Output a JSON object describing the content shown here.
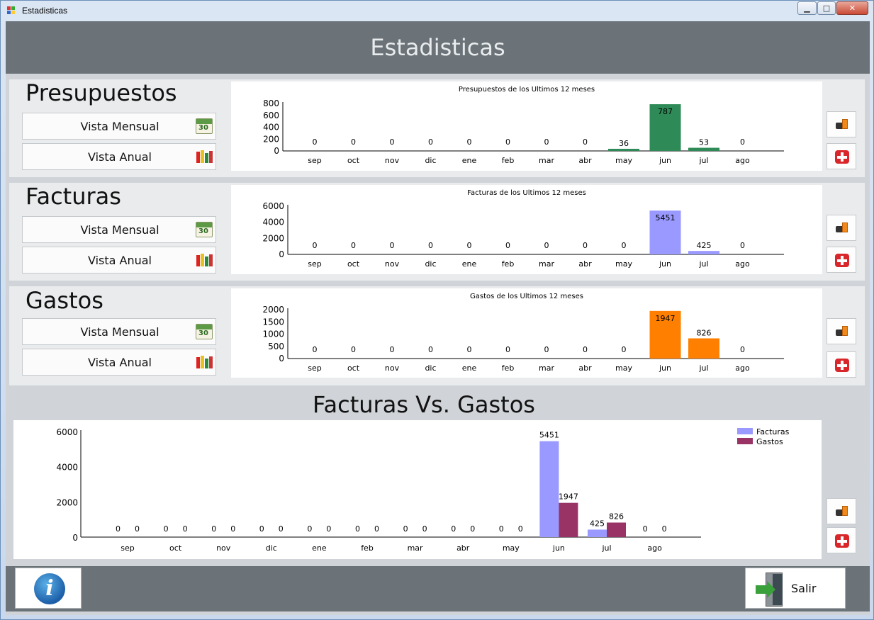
{
  "window": {
    "title": "Estadisticas",
    "min_label": "▁",
    "max_label": "□",
    "close_label": "✕"
  },
  "header": {
    "title": "Estadisticas"
  },
  "panels": [
    {
      "title": "Presupuestos",
      "monthly_label": "Vista Mensual",
      "yearly_label": "Vista Anual"
    },
    {
      "title": "Facturas",
      "monthly_label": "Vista Mensual",
      "yearly_label": "Vista Anual"
    },
    {
      "title": "Gastos",
      "monthly_label": "Vista Mensual",
      "yearly_label": "Vista Anual"
    }
  ],
  "calendar_icon_text": "30",
  "vs_title": "Facturas Vs. Gastos",
  "footer": {
    "info_glyph": "i",
    "exit_label": "Salir"
  },
  "colors": {
    "presupuestos": "#2e8b57",
    "facturas": "#9999ff",
    "gastos": "#ff8000",
    "gastos_vs": "#993366"
  },
  "chart_data": [
    {
      "type": "bar",
      "title": "Presupuestos de los Ultimos 12 meses",
      "categories": [
        "sep",
        "oct",
        "nov",
        "dic",
        "ene",
        "feb",
        "mar",
        "abr",
        "may",
        "jun",
        "jul",
        "ago"
      ],
      "values": [
        0,
        0,
        0,
        0,
        0,
        0,
        0,
        0,
        36,
        787,
        53,
        0
      ],
      "ylim": [
        0,
        800
      ],
      "yticks": [
        0,
        200,
        400,
        600,
        800
      ],
      "color": "#2e8b57"
    },
    {
      "type": "bar",
      "title": "Facturas de los Ultimos 12 meses",
      "categories": [
        "sep",
        "oct",
        "nov",
        "dic",
        "ene",
        "feb",
        "mar",
        "abr",
        "may",
        "jun",
        "jul",
        "ago"
      ],
      "values": [
        0,
        0,
        0,
        0,
        0,
        0,
        0,
        0,
        0,
        5451,
        425,
        0
      ],
      "ylim": [
        0,
        6000
      ],
      "yticks": [
        0,
        2000,
        4000,
        6000
      ],
      "color": "#9999ff"
    },
    {
      "type": "bar",
      "title": "Gastos de los Ultimos 12 meses",
      "categories": [
        "sep",
        "oct",
        "nov",
        "dic",
        "ene",
        "feb",
        "mar",
        "abr",
        "may",
        "jun",
        "jul",
        "ago"
      ],
      "values": [
        0,
        0,
        0,
        0,
        0,
        0,
        0,
        0,
        0,
        1947,
        826,
        0
      ],
      "ylim": [
        0,
        2000
      ],
      "yticks": [
        0,
        500,
        1000,
        1500,
        2000
      ],
      "color": "#ff8000"
    },
    {
      "type": "bar",
      "title": "Facturas Vs. Gastos",
      "categories": [
        "sep",
        "oct",
        "nov",
        "dic",
        "ene",
        "feb",
        "mar",
        "abr",
        "may",
        "jun",
        "jul",
        "ago"
      ],
      "series": [
        {
          "name": "Facturas",
          "values": [
            0,
            0,
            0,
            0,
            0,
            0,
            0,
            0,
            0,
            5451,
            425,
            0
          ],
          "color": "#9999ff"
        },
        {
          "name": "Gastos",
          "values": [
            0,
            0,
            0,
            0,
            0,
            0,
            0,
            0,
            0,
            1947,
            826,
            0
          ],
          "color": "#993366"
        }
      ],
      "ylim": [
        0,
        6000
      ],
      "yticks": [
        0,
        2000,
        4000,
        6000
      ],
      "legend": "top-right"
    }
  ]
}
